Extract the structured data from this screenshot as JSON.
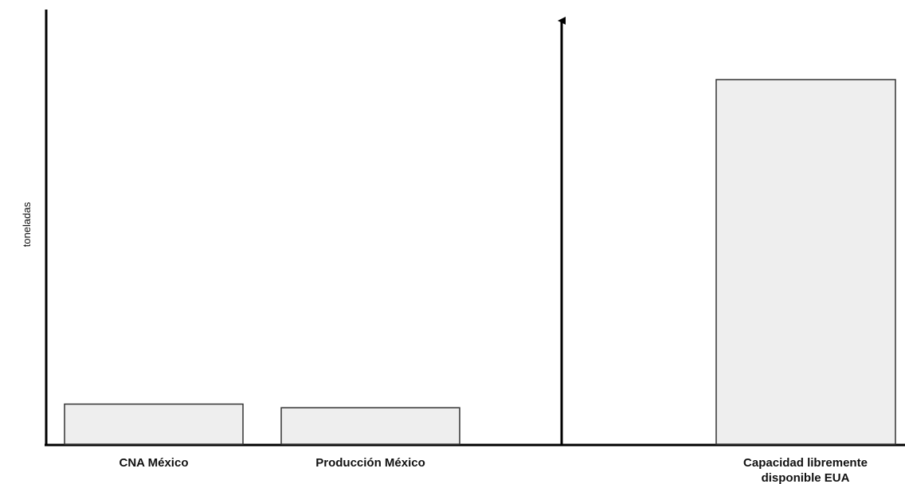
{
  "chart_data": {
    "type": "bar",
    "title": "",
    "xlabel": "",
    "ylabel": "toneladas",
    "ylim": [
      0,
      100
    ],
    "grid": false,
    "categories": [
      "CNA México",
      "Producción México",
      "Capacidad libremente disponible EUA"
    ],
    "category_label_lines": [
      [
        "CNA México"
      ],
      [
        "Producción México"
      ],
      [
        "Capacidad libremente",
        "disponible EUA"
      ]
    ],
    "values": [
      11,
      10,
      100
    ],
    "colors": {
      "bar_fill": "#eeeeee",
      "bar_stroke": "#333333",
      "axis": "#000000"
    },
    "annotations": [
      {
        "type": "vertical-arrow",
        "between_categories": [
          1,
          2
        ],
        "direction": "up"
      }
    ]
  }
}
